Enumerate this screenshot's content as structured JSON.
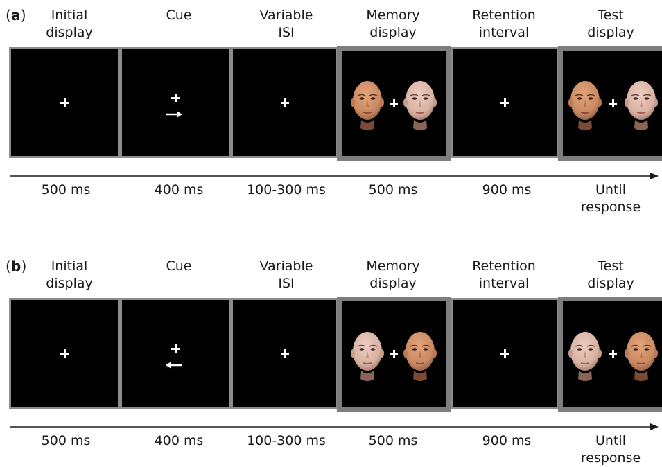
{
  "panels": [
    {
      "label": "a",
      "cue_direction": "right",
      "stages": [
        {
          "title": "Initial\ndisplay",
          "duration": "500 ms"
        },
        {
          "title": "Cue",
          "duration": "400 ms"
        },
        {
          "title": "Variable\nISI",
          "duration": "100-300 ms"
        },
        {
          "title": "Memory\ndisplay",
          "duration": "500 ms"
        },
        {
          "title": "Retention\ninterval",
          "duration": "900 ms"
        },
        {
          "title": "Test\ndisplay",
          "duration": "Until\nresponse"
        }
      ]
    },
    {
      "label": "b",
      "cue_direction": "left",
      "stages": [
        {
          "title": "Initial\ndisplay",
          "duration": "500 ms"
        },
        {
          "title": "Cue",
          "duration": "400 ms"
        },
        {
          "title": "Variable\nISI",
          "duration": "100-300 ms"
        },
        {
          "title": "Memory\ndisplay",
          "duration": "500 ms"
        },
        {
          "title": "Retention\ninterval",
          "duration": "900 ms"
        },
        {
          "title": "Test\ndisplay",
          "duration": "Until\nresponse"
        }
      ]
    }
  ],
  "colors": {
    "screen": "#000000",
    "frame": "#8c8c8c",
    "skin_warm": "#c98a63",
    "skin_pale": "#d8b2a2"
  }
}
